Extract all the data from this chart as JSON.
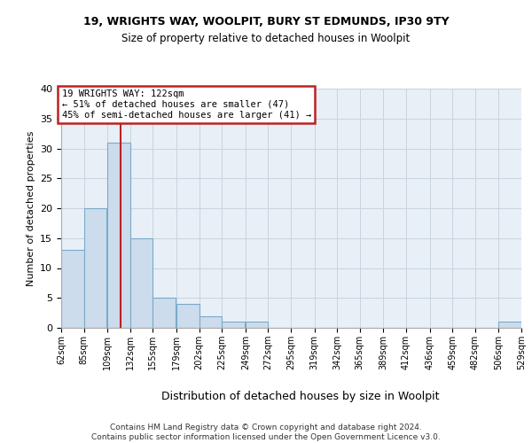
{
  "title1": "19, WRIGHTS WAY, WOOLPIT, BURY ST EDMUNDS, IP30 9TY",
  "title2": "Size of property relative to detached houses in Woolpit",
  "xlabel": "Distribution of detached houses by size in Woolpit",
  "ylabel": "Number of detached properties",
  "bins": [
    62,
    85,
    109,
    132,
    155,
    179,
    202,
    225,
    249,
    272,
    295,
    319,
    342,
    365,
    389,
    412,
    436,
    459,
    482,
    506,
    529
  ],
  "bar_values": [
    13,
    20,
    31,
    15,
    5,
    4,
    2,
    1,
    1,
    0,
    0,
    0,
    0,
    0,
    0,
    0,
    0,
    0,
    0,
    1
  ],
  "bar_color": "#ccdcec",
  "bar_edge_color": "#7aaac8",
  "grid_color": "#c8d4e0",
  "property_size": 122,
  "annotation_line1": "19 WRIGHTS WAY: 122sqm",
  "annotation_line2": "← 51% of detached houses are smaller (47)",
  "annotation_line3": "45% of semi-detached houses are larger (41) →",
  "annotation_box_edgecolor": "#bb2222",
  "ylim": [
    0,
    40
  ],
  "yticks": [
    0,
    5,
    10,
    15,
    20,
    25,
    30,
    35,
    40
  ],
  "footer": "Contains HM Land Registry data © Crown copyright and database right 2024.\nContains public sector information licensed under the Open Government Licence v3.0.",
  "bg_color": "#e8eff7"
}
